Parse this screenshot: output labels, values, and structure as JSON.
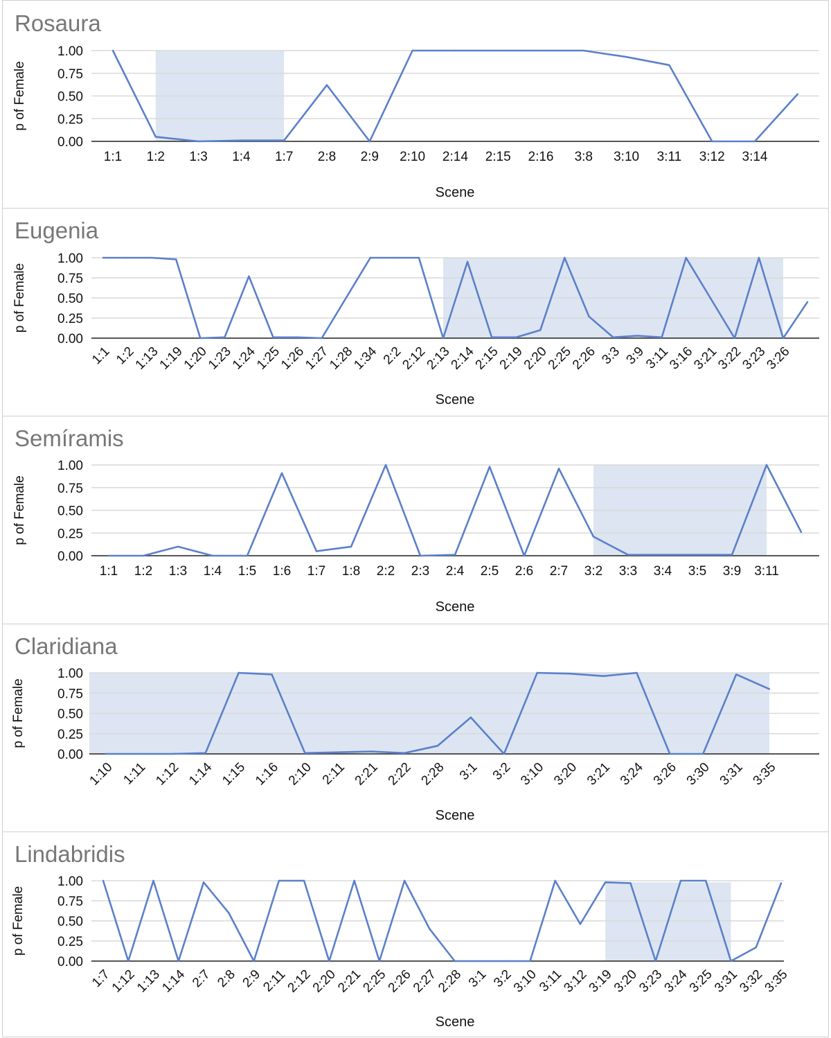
{
  "colors": {
    "line": "#5b80c9",
    "highlight": "#dce5f1",
    "grid": "#d9d9d9",
    "axis": "#555555",
    "title": "#777777"
  },
  "chart_data": [
    {
      "type": "line",
      "title": "Rosaura",
      "xlabel": "Scene",
      "ylabel": "p of Female",
      "ylim": [
        0,
        1
      ],
      "yticks": [
        "0.00",
        "0.25",
        "0.50",
        "0.75",
        "1.00"
      ],
      "grid": true,
      "categories": [
        "1:1",
        "1:2",
        "1:3",
        "1:4",
        "1:7",
        "2:8",
        "2:9",
        "2:10",
        "2:14",
        "2:15",
        "2:16",
        "3:8",
        "3:10",
        "3:11",
        "3:12",
        "3:14",
        ""
      ],
      "values": [
        1.0,
        0.05,
        0.0,
        0.01,
        0.01,
        0.62,
        0.0,
        1.0,
        1.0,
        1.0,
        1.0,
        1.0,
        0.93,
        0.84,
        0.0,
        0.0,
        0.52
      ],
      "highlight": {
        "from": "1:2",
        "to": "1:7",
        "top": 1.0
      },
      "rotated_labels": false
    },
    {
      "type": "line",
      "title": "Eugenia",
      "xlabel": "Scene",
      "ylabel": "p of Female",
      "ylim": [
        0,
        1
      ],
      "yticks": [
        "0.00",
        "0.25",
        "0.50",
        "0.75",
        "1.00"
      ],
      "grid": true,
      "categories": [
        "1:1",
        "1:2",
        "1:13",
        "1:19",
        "1:20",
        "1:23",
        "1:24",
        "1:25",
        "1:26",
        "1:27",
        "1:28",
        "1:34",
        "2:2",
        "2:12",
        "2:13",
        "2:14",
        "2:15",
        "2:19",
        "2:20",
        "2:25",
        "2:26",
        "3:3",
        "3:9",
        "3:11",
        "3:16",
        "3:21",
        "3:22",
        "3:23",
        "3:26",
        ""
      ],
      "values": [
        1.0,
        1.0,
        1.0,
        0.98,
        0.0,
        0.01,
        0.77,
        0.01,
        0.01,
        0.0,
        0.5,
        1.0,
        1.0,
        1.0,
        0.0,
        0.95,
        0.01,
        0.01,
        0.1,
        1.0,
        0.27,
        0.01,
        0.03,
        0.01,
        1.0,
        0.5,
        0.0,
        1.0,
        0.0,
        0.45
      ],
      "highlight": {
        "from": "2:13",
        "to": "3:26",
        "top": 1.0
      },
      "rotated_labels": true
    },
    {
      "type": "line",
      "title": "Semíramis",
      "xlabel": "Scene",
      "ylabel": "p of Female",
      "ylim": [
        0,
        1
      ],
      "yticks": [
        "0.00",
        "0.25",
        "0.50",
        "0.75",
        "1.00"
      ],
      "grid": true,
      "categories": [
        "1:1",
        "1:2",
        "1:3",
        "1:4",
        "1:5",
        "1:6",
        "1:7",
        "1:8",
        "2:2",
        "2:3",
        "2:4",
        "2:5",
        "2:6",
        "2:7",
        "3:2",
        "3:3",
        "3:4",
        "3:5",
        "3:9",
        "3:11",
        ""
      ],
      "values": [
        0.0,
        0.0,
        0.1,
        0.0,
        0.0,
        0.91,
        0.05,
        0.1,
        1.0,
        0.0,
        0.01,
        0.98,
        0.0,
        0.96,
        0.21,
        0.01,
        0.01,
        0.01,
        0.01,
        1.0,
        0.26
      ],
      "highlight": {
        "from": "3:2",
        "to": "3:11",
        "top": 1.0
      },
      "rotated_labels": false
    },
    {
      "type": "line",
      "title": "Claridiana",
      "xlabel": "Scene",
      "ylabel": "p of Female",
      "ylim": [
        0,
        1
      ],
      "yticks": [
        "0.00",
        "0.25",
        "0.50",
        "0.75",
        "1.00"
      ],
      "grid": true,
      "categories": [
        "1:10",
        "1:11",
        "1:12",
        "1:14",
        "1:15",
        "1:16",
        "2:10",
        "2:11",
        "2:21",
        "2:22",
        "2:28",
        "3:1",
        "3:2",
        "3:10",
        "3:20",
        "3:21",
        "3:24",
        "3:26",
        "3:30",
        "3:31",
        "3:35"
      ],
      "values": [
        0.0,
        0.0,
        0.0,
        0.01,
        1.0,
        0.98,
        0.01,
        0.02,
        0.03,
        0.01,
        0.1,
        0.45,
        0.0,
        1.0,
        0.99,
        0.96,
        1.0,
        0.0,
        0.0,
        0.98,
        0.8
      ],
      "highlight": {
        "from": "1:10",
        "to": "3:35",
        "top": 1.0
      },
      "rotated_labels": true
    },
    {
      "type": "line",
      "title": "Lindabridis",
      "xlabel": "Scene",
      "ylabel": "p of Female",
      "ylim": [
        0,
        1
      ],
      "yticks": [
        "0.00",
        "0.25",
        "0.50",
        "0.75",
        "1.00"
      ],
      "grid": true,
      "categories": [
        "1:7",
        "1:12",
        "1:13",
        "1:14",
        "2:7",
        "2:8",
        "2:9",
        "2:11",
        "2:12",
        "2:20",
        "2:21",
        "2:25",
        "2:26",
        "2:27",
        "2:28",
        "3:1",
        "3:2",
        "3:10",
        "3:11",
        "3:12",
        "3:19",
        "3:20",
        "3:23",
        "3:24",
        "3:25",
        "3:31",
        "3:32",
        "3:35"
      ],
      "values": [
        1.0,
        0.0,
        1.0,
        0.0,
        0.98,
        0.6,
        0.0,
        1.0,
        1.0,
        0.0,
        1.0,
        0.0,
        1.0,
        0.4,
        0.0,
        0.0,
        0.0,
        0.0,
        1.0,
        0.46,
        0.98,
        0.97,
        0.0,
        1.0,
        1.0,
        0.0,
        0.17,
        0.97
      ],
      "highlight": {
        "from": "3:19",
        "to": "3:31",
        "top": 0.98
      },
      "rotated_labels": true
    }
  ]
}
